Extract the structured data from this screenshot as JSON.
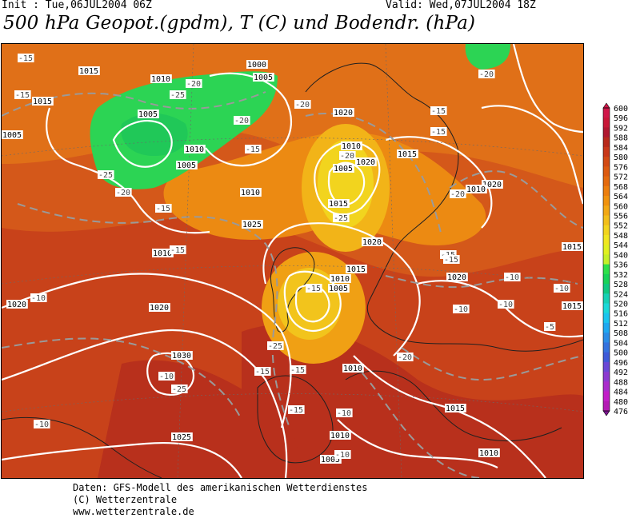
{
  "header": {
    "init_text": "Init : Tue,06JUL2004 06Z",
    "valid_text": "Valid: Wed,07JUL2004 18Z",
    "title": "500 hPa Geopot.(gpdm), T (C) und Bodendr. (hPa)"
  },
  "colorbar": {
    "levels": [
      "600",
      "596",
      "592",
      "588",
      "584",
      "580",
      "576",
      "572",
      "568",
      "564",
      "560",
      "556",
      "552",
      "548",
      "544",
      "540",
      "536",
      "532",
      "528",
      "524",
      "520",
      "516",
      "512",
      "508",
      "504",
      "500",
      "496",
      "492",
      "488",
      "484",
      "480",
      "476"
    ],
    "colors": [
      "#d0184a",
      "#c81838",
      "#b01830",
      "#b82a1c",
      "#c8381a",
      "#d24a14",
      "#dc5a10",
      "#e46a0e",
      "#ec7e0e",
      "#f0920e",
      "#f2a814",
      "#f2be1a",
      "#f2d41e",
      "#f0e620",
      "#e0f020",
      "#c4f028",
      "#2ee04a",
      "#18d258",
      "#10c880",
      "#16d0b4",
      "#1ad8d8",
      "#1ac4ee",
      "#1ea8f0",
      "#2a8ce6",
      "#3472de",
      "#3e5ad8",
      "#6a48d6",
      "#8c3ad0",
      "#aa2ccc",
      "#c21ec8",
      "#b41ab4",
      "#7c1490"
    ]
  },
  "map": {
    "pressure_labels": [
      "1015",
      "1000",
      "1010",
      "1005",
      "1005",
      "1010",
      "1005",
      "1020",
      "1010",
      "1005",
      "1015",
      "1010",
      "1005",
      "1025",
      "1020",
      "1015",
      "1010",
      "1020",
      "1015",
      "1010",
      "1005",
      "1020",
      "1010",
      "1015",
      "1015",
      "1020",
      "1030",
      "1025",
      "1010",
      "1010",
      "1005",
      "1010",
      "1015",
      "1015",
      "1020",
      "1020"
    ],
    "temperature_labels": [
      "-15",
      "-15",
      "-20",
      "-25",
      "-20",
      "-20",
      "-15",
      "-25",
      "-20",
      "-15",
      "-20",
      "-15",
      "-25",
      "-20",
      "-15",
      "-15",
      "-25",
      "-15",
      "-15",
      "-20",
      "-15",
      "-10",
      "-15",
      "-10",
      "-10",
      "-10",
      "-10",
      "-10",
      "-10",
      "-5",
      "-15",
      "-25",
      "-20",
      "-15",
      "-10",
      "-10"
    ]
  },
  "footer": {
    "line1": "Daten: GFS-Modell des amerikanischen Wetterdienstes",
    "line2": "(C) Wetterzentrale",
    "line3": "www.wetterzentrale.de"
  }
}
